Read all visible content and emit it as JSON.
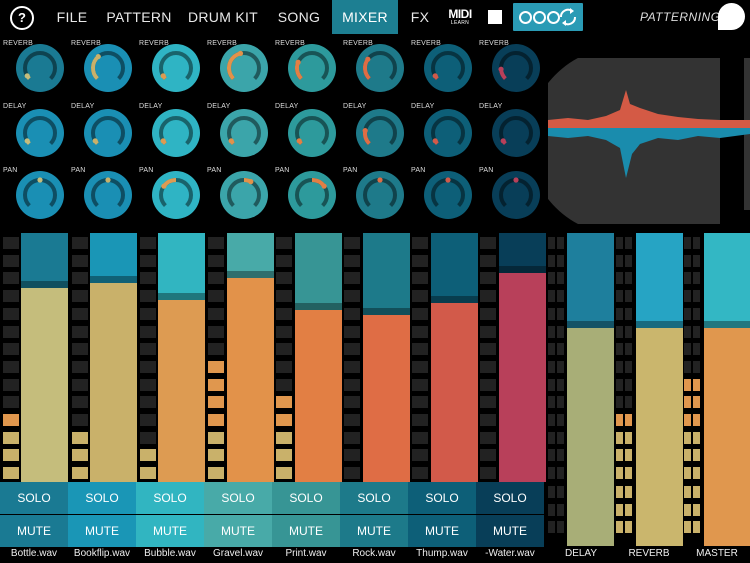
{
  "topbar": {
    "help_label": "?",
    "menu": [
      {
        "label": "FILE",
        "active": false
      },
      {
        "label": "PATTERN",
        "active": false
      },
      {
        "label": "DRUM KIT",
        "active": false
      },
      {
        "label": "SONG",
        "active": false
      },
      {
        "label": "MIXER",
        "active": true
      },
      {
        "label": "FX",
        "active": false
      }
    ],
    "midi_label": "MIDI",
    "midi_sub": "LEARN",
    "brand": "PATTERNING"
  },
  "knob_rows": [
    {
      "label": "REVERB",
      "values": [
        0.05,
        0.35,
        0.05,
        0.45,
        0.25,
        0.3,
        0.05,
        0.15
      ]
    },
    {
      "label": "DELAY",
      "values": [
        0.05,
        0.05,
        0.05,
        0.05,
        0.05,
        0.2,
        0.05,
        0.05
      ]
    },
    {
      "label": "PAN",
      "values": [
        0.5,
        0.5,
        0.3,
        0.6,
        0.7,
        0.5,
        0.5,
        0.5
      ]
    }
  ],
  "tracks": [
    {
      "name": "Bottle.wav",
      "solo": "SOLO",
      "mute": "MUTE",
      "color": "#c5bd7c",
      "bg": "#1a7a93",
      "level": 0.78,
      "meter": 4
    },
    {
      "name": "Bookflip.wav",
      "solo": "SOLO",
      "mute": "MUTE",
      "color": "#c9b16a",
      "bg": "#1a96b6",
      "level": 0.8,
      "meter": 3
    },
    {
      "name": "Bubble.wav",
      "solo": "SOLO",
      "mute": "MUTE",
      "color": "#dd9b52",
      "bg": "#31b5c1",
      "level": 0.73,
      "meter": 2
    },
    {
      "name": "Gravel.wav",
      "solo": "SOLO",
      "mute": "MUTE",
      "color": "#e2924a",
      "bg": "#48aaa8",
      "level": 0.82,
      "meter": 7
    },
    {
      "name": "Print.wav",
      "solo": "SOLO",
      "mute": "MUTE",
      "color": "#e27f44",
      "bg": "#379595",
      "level": 0.69,
      "meter": 5
    },
    {
      "name": "Rock.wav",
      "solo": "SOLO",
      "mute": "MUTE",
      "color": "#df6d45",
      "bg": "#1d7a8a",
      "level": 0.67,
      "meter": 0
    },
    {
      "name": "Thump.wav",
      "solo": "SOLO",
      "mute": "MUTE",
      "color": "#d25a4a",
      "bg": "#0d5f78",
      "level": 0.72,
      "meter": 0
    },
    {
      "name": "-Water.wav",
      "solo": "SOLO",
      "mute": "MUTE",
      "color": "#b8405a",
      "bg": "#083e58",
      "level": 0.84,
      "meter": 0
    }
  ],
  "buses": [
    {
      "name": "DELAY",
      "color": "#a8ae77",
      "bg": "#1e7f9d",
      "level": 0.62,
      "meter": 0
    },
    {
      "name": "REVERB",
      "color": "#cab66d",
      "bg": "#26a4c4",
      "level": 0.62,
      "meter": 4
    },
    {
      "name": "MASTER",
      "color": "#e0974e",
      "bg": "#33b7c4",
      "level": 0.62,
      "meter": 6
    }
  ],
  "colors": {
    "accent": "#1d7f92",
    "background": "#000000"
  }
}
